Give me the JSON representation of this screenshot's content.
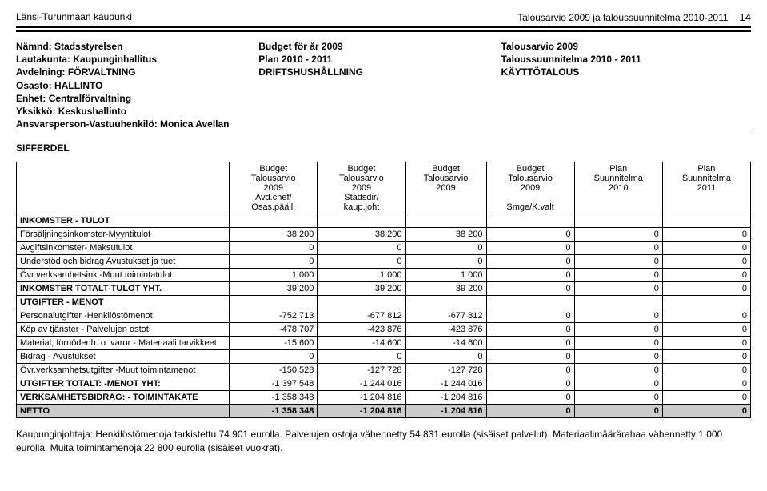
{
  "header": {
    "left": "Länsi-Turunmaan kaupunki",
    "right": "Talousarvio 2009 ja taloussuunnitelma 2010-2011",
    "page_number": "14"
  },
  "meta": {
    "col1": {
      "l1_label": "Nämnd:",
      "l1_val": "Stadsstyrelsen",
      "l2_label": "Lautakunta:",
      "l2_val": "Kaupunginhallitus",
      "l3_label": "Avdelning:",
      "l3_val": "FÖRVALTNING",
      "l4_label": "Osasto:",
      "l4_val": "HALLINTO",
      "l5_label": "Enhet:",
      "l5_val": "Centralförvaltning",
      "l6_label": "Yksikkö:",
      "l6_val": "Keskushallinto",
      "l7": "Ansvarsperson-Vastuuhenkilö: Monica Avellan",
      "sifferdel": "SIFFERDEL"
    },
    "col2": {
      "l1": "Budget för år 2009",
      "l2": "Plan 2010 - 2011",
      "l3": "DRIFTSHUSHÅLLNING"
    },
    "col3": {
      "l1": "Talousarvio 2009",
      "l2": "Taloussuunnitelma 2010 - 2011",
      "l3": "KÄYTTÖTALOUS"
    }
  },
  "table": {
    "col_widths": [
      "29%",
      "12%",
      "12%",
      "11%",
      "12%",
      "12%",
      "12%"
    ],
    "head": {
      "c1": "",
      "c2a": "Budget",
      "c2b": "Talousarvio",
      "c2c": "2009",
      "c2d": "Avd.chef/",
      "c2e": "Osas.pääll.",
      "c3a": "Budget",
      "c3b": "Talousarvio",
      "c3c": "2009",
      "c3d": "Stadsdir/",
      "c3e": "kaup.joht",
      "c4a": "Budget",
      "c4b": "Talousarvio",
      "c4c": "2009",
      "c5a": "Budget",
      "c5b": "Talousarvio",
      "c5c": "2009",
      "c5d": "",
      "c5e": "Smge/K.valt",
      "c6a": "Plan",
      "c6b": "Suunnitelma",
      "c6c": "2010",
      "c7a": "Plan",
      "c7b": "Suunnitelma",
      "c7c": "2011"
    },
    "section1": "INKOMSTER - TULOT",
    "rows_income": [
      {
        "label": "Försäljningsinkomster-Myyntitulot",
        "v": [
          "38 200",
          "38 200",
          "38 200",
          "0",
          "0",
          "0"
        ]
      },
      {
        "label": "Avgiftsinkomster- Maksutulot",
        "v": [
          "0",
          "0",
          "0",
          "0",
          "0",
          "0"
        ]
      },
      {
        "label": "Understöd och bidrag Avustukset ja tuet",
        "v": [
          "0",
          "0",
          "0",
          "0",
          "0",
          "0"
        ]
      },
      {
        "label": "Övr.verksamhetsink.-Muut toimintatulot",
        "v": [
          "1 000",
          "1 000",
          "1 000",
          "0",
          "0",
          "0"
        ]
      }
    ],
    "income_total": {
      "label": "INKOMSTER TOTALT-TULOT YHT.",
      "v": [
        "39 200",
        "39 200",
        "39 200",
        "0",
        "0",
        "0"
      ]
    },
    "section2": "UTGIFTER - MENOT",
    "rows_expense": [
      {
        "label": "Personalutgifter -Henkilöstömenot",
        "v": [
          "-752 713",
          "-677 812",
          "-677 812",
          "0",
          "0",
          "0"
        ]
      },
      {
        "label": "Köp av tjänster - Palvelujen ostot",
        "v": [
          "-478 707",
          "-423 876",
          "-423 876",
          "0",
          "0",
          "0"
        ]
      },
      {
        "label": "Material, förnödenh. o. varor - Materiaali tarvikkeet",
        "v": [
          "-15 600",
          "-14 600",
          "-14 600",
          "0",
          "0",
          "0"
        ]
      },
      {
        "label": "Bidrag - Avustukset",
        "v": [
          "0",
          "0",
          "0",
          "0",
          "0",
          "0"
        ]
      },
      {
        "label": "Övr.verksamhetsutgifter -Muut toimintamenot",
        "v": [
          "-150 528",
          "-127 728",
          "-127 728",
          "0",
          "0",
          "0"
        ]
      }
    ],
    "expense_total": {
      "label": "UTGIFTER TOTALT: -MENOT YHT:",
      "v": [
        "-1 397 548",
        "-1 244 016",
        "-1 244 016",
        "0",
        "0",
        "0"
      ]
    },
    "verksbidrag": {
      "label": "VERKSAMHETSBIDRAG: - TOIMINTAKATE",
      "v": [
        "-1 358 348",
        "-1 204 816",
        "-1 204 816",
        "0",
        "0",
        "0"
      ]
    },
    "netto": {
      "label": "NETTO",
      "v": [
        "-1 358 348",
        "-1 204 816",
        "-1 204 816",
        "0",
        "0",
        "0"
      ]
    }
  },
  "footnote": "Kaupunginjohtaja: Henkilöstömenoja tarkistettu 74 901 eurolla. Palvelujen ostoja vähennetty 54 831 eurolla (sisäiset palvelut). Materiaalimäärärahaa vähennetty 1 000 eurolla. Muita toimintamenoja 22 800 eurolla (sisäiset vuokrat)."
}
